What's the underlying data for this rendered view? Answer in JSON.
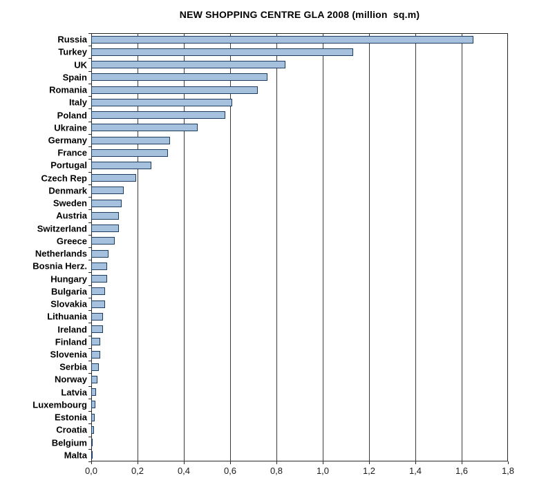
{
  "chart_data": {
    "type": "bar",
    "orientation": "horizontal",
    "title": "NEW SHOPPING CENTRE GLA 2008 (million  sq.m)",
    "xlabel": "",
    "ylabel": "",
    "categories": [
      "Russia",
      "Turkey",
      "UK",
      "Spain",
      "Romania",
      "Italy",
      "Poland",
      "Ukraine",
      "Germany",
      "France",
      "Portugal",
      "Czech Rep",
      "Denmark",
      "Sweden",
      "Austria",
      "Switzerland",
      "Greece",
      "Netherlands",
      "Bosnia Herz.",
      "Hungary",
      "Bulgaria",
      "Slovakia",
      "Lithuania",
      "Ireland",
      "Finland",
      "Slovenia",
      "Serbia",
      "Norway",
      "Latvia",
      "Luxembourg",
      "Estonia",
      "Croatia",
      "Belgium",
      "Malta"
    ],
    "values": [
      1.65,
      1.13,
      0.84,
      0.76,
      0.72,
      0.61,
      0.58,
      0.46,
      0.34,
      0.33,
      0.26,
      0.195,
      0.14,
      0.13,
      0.12,
      0.12,
      0.1,
      0.075,
      0.07,
      0.07,
      0.06,
      0.06,
      0.05,
      0.05,
      0.04,
      0.04,
      0.033,
      0.028,
      0.02,
      0.018,
      0.015,
      0.013,
      0.005,
      0.003
    ],
    "xlim": [
      0,
      1.8
    ],
    "x_ticks": [
      0,
      0.2,
      0.4,
      0.6,
      0.8,
      1.0,
      1.2,
      1.4,
      1.6,
      1.8
    ],
    "x_tick_labels": [
      "0,0",
      "0,2",
      "0,4",
      "0,6",
      "0,8",
      "1,0",
      "1,2",
      "1,4",
      "1,6",
      "1,8"
    ],
    "grid": "vertical-major",
    "legend": "none",
    "colors": {
      "bar_fill": "#a6c1de",
      "bar_border": "#1b3a5f",
      "gridline": "#3a3a3a",
      "axis": "#262626",
      "text": "#000000",
      "background": "#ffffff"
    }
  }
}
